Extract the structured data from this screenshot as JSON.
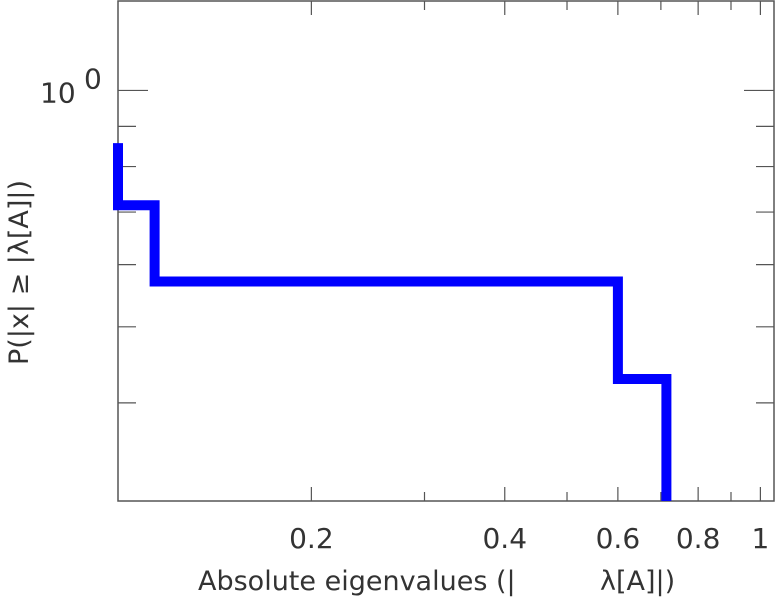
{
  "chart_data": {
    "type": "line",
    "step": true,
    "xscale": "log",
    "yscale": "log",
    "xlabel_left": "Absolute eigenvalues (|",
    "xlabel_right": "λ[A]|)",
    "ylabel": "P(|x|  ≥ |λ[A]|)",
    "xlim": [
      0.1,
      1.05
    ],
    "ylim": [
      0.3,
      1.3
    ],
    "x_tick_labels": [
      {
        "value": 0.2,
        "label": "0.2"
      },
      {
        "value": 0.4,
        "label": "0.4"
      },
      {
        "value": 0.6,
        "label": "0.6"
      },
      {
        "value": 0.8,
        "label": "0.8"
      },
      {
        "value": 1.0,
        "label": "1"
      }
    ],
    "y_tick_labels": [
      {
        "value": 1.0,
        "base": "10",
        "exp": "0"
      }
    ],
    "grid": false,
    "line_color": "#0000ff",
    "series": [
      {
        "points": [
          [
            0.1,
            0.857
          ],
          [
            0.1,
            0.714
          ],
          [
            0.114,
            0.714
          ],
          [
            0.114,
            0.571
          ],
          [
            0.6,
            0.571
          ],
          [
            0.6,
            0.429
          ],
          [
            0.714,
            0.429
          ],
          [
            0.714,
            0.3
          ]
        ]
      }
    ]
  }
}
